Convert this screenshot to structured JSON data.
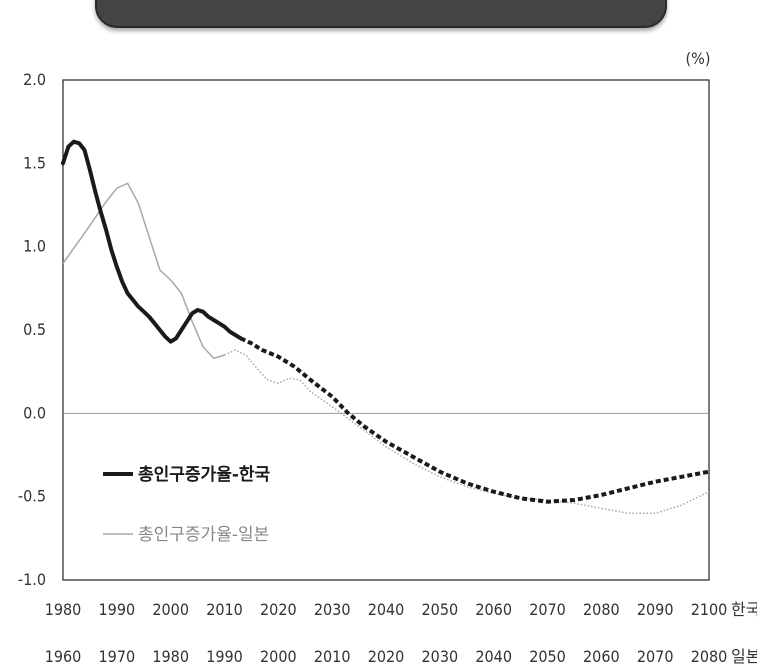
{
  "chart_data": {
    "type": "line",
    "unit_label": "(%)",
    "ylim": [
      -1.0,
      2.0
    ],
    "yticks": [
      "2.0",
      "1.5",
      "1.0",
      "0.5",
      "0.0",
      "-0.5",
      "-1.0"
    ],
    "x_axis_primary": {
      "ticks": [
        "1980",
        "1990",
        "2000",
        "2010",
        "2020",
        "2030",
        "2040",
        "2050",
        "2060",
        "2070",
        "2080",
        "2090",
        "2100"
      ],
      "suffix": "한국"
    },
    "x_axis_secondary": {
      "ticks": [
        "1960",
        "1970",
        "1980",
        "1990",
        "2000",
        "2010",
        "2020",
        "2030",
        "2040",
        "2050",
        "2060",
        "2070",
        "2080"
      ],
      "suffix": "일본"
    },
    "xlim": [
      1980,
      2100
    ],
    "projection_start_korea": 2013,
    "series": [
      {
        "name": "총인구증가율-한국",
        "color": "#1a1a1a",
        "points": [
          [
            1980,
            1.5
          ],
          [
            1981,
            1.6
          ],
          [
            1982,
            1.63
          ],
          [
            1983,
            1.62
          ],
          [
            1984,
            1.58
          ],
          [
            1985,
            1.46
          ],
          [
            1986,
            1.33
          ],
          [
            1987,
            1.21
          ],
          [
            1988,
            1.1
          ],
          [
            1989,
            0.98
          ],
          [
            1990,
            0.88
          ],
          [
            1991,
            0.79
          ],
          [
            1992,
            0.72
          ],
          [
            1993,
            0.68
          ],
          [
            1994,
            0.64
          ],
          [
            1995,
            0.61
          ],
          [
            1996,
            0.58
          ],
          [
            1997,
            0.54
          ],
          [
            1998,
            0.5
          ],
          [
            1999,
            0.46
          ],
          [
            2000,
            0.43
          ],
          [
            2001,
            0.45
          ],
          [
            2002,
            0.5
          ],
          [
            2003,
            0.55
          ],
          [
            2004,
            0.6
          ],
          [
            2005,
            0.62
          ],
          [
            2006,
            0.61
          ],
          [
            2007,
            0.58
          ],
          [
            2008,
            0.56
          ],
          [
            2009,
            0.54
          ],
          [
            2010,
            0.52
          ],
          [
            2011,
            0.49
          ],
          [
            2012,
            0.47
          ],
          [
            2013,
            0.45
          ],
          [
            2015,
            0.42
          ],
          [
            2017,
            0.38
          ],
          [
            2020,
            0.34
          ],
          [
            2023,
            0.28
          ],
          [
            2026,
            0.2
          ],
          [
            2030,
            0.1
          ],
          [
            2033,
            0.0
          ],
          [
            2036,
            -0.08
          ],
          [
            2040,
            -0.17
          ],
          [
            2045,
            -0.26
          ],
          [
            2050,
            -0.35
          ],
          [
            2055,
            -0.42
          ],
          [
            2060,
            -0.47
          ],
          [
            2065,
            -0.51
          ],
          [
            2070,
            -0.53
          ],
          [
            2075,
            -0.52
          ],
          [
            2080,
            -0.49
          ],
          [
            2085,
            -0.45
          ],
          [
            2090,
            -0.41
          ],
          [
            2095,
            -0.38
          ],
          [
            2100,
            -0.35
          ]
        ]
      },
      {
        "name": "총인구증가율-일본",
        "color": "#a8a8a8",
        "points": [
          [
            1980,
            0.9
          ],
          [
            1984,
            1.08
          ],
          [
            1988,
            1.27
          ],
          [
            1990,
            1.35
          ],
          [
            1992,
            1.38
          ],
          [
            1994,
            1.26
          ],
          [
            1996,
            1.06
          ],
          [
            1998,
            0.86
          ],
          [
            2000,
            0.8
          ],
          [
            2002,
            0.72
          ],
          [
            2004,
            0.55
          ],
          [
            2006,
            0.4
          ],
          [
            2008,
            0.33
          ],
          [
            2010,
            0.35
          ],
          [
            2012,
            0.38
          ],
          [
            2014,
            0.35
          ],
          [
            2016,
            0.27
          ],
          [
            2018,
            0.2
          ],
          [
            2020,
            0.18
          ],
          [
            2022,
            0.21
          ],
          [
            2024,
            0.2
          ],
          [
            2026,
            0.13
          ],
          [
            2030,
            0.04
          ],
          [
            2035,
            -0.08
          ],
          [
            2040,
            -0.2
          ],
          [
            2045,
            -0.3
          ],
          [
            2050,
            -0.38
          ],
          [
            2055,
            -0.44
          ],
          [
            2060,
            -0.48
          ],
          [
            2065,
            -0.51
          ],
          [
            2070,
            -0.52
          ],
          [
            2075,
            -0.54
          ],
          [
            2080,
            -0.57
          ],
          [
            2085,
            -0.6
          ],
          [
            2090,
            -0.6
          ],
          [
            2095,
            -0.55
          ],
          [
            2100,
            -0.47
          ]
        ]
      }
    ]
  }
}
